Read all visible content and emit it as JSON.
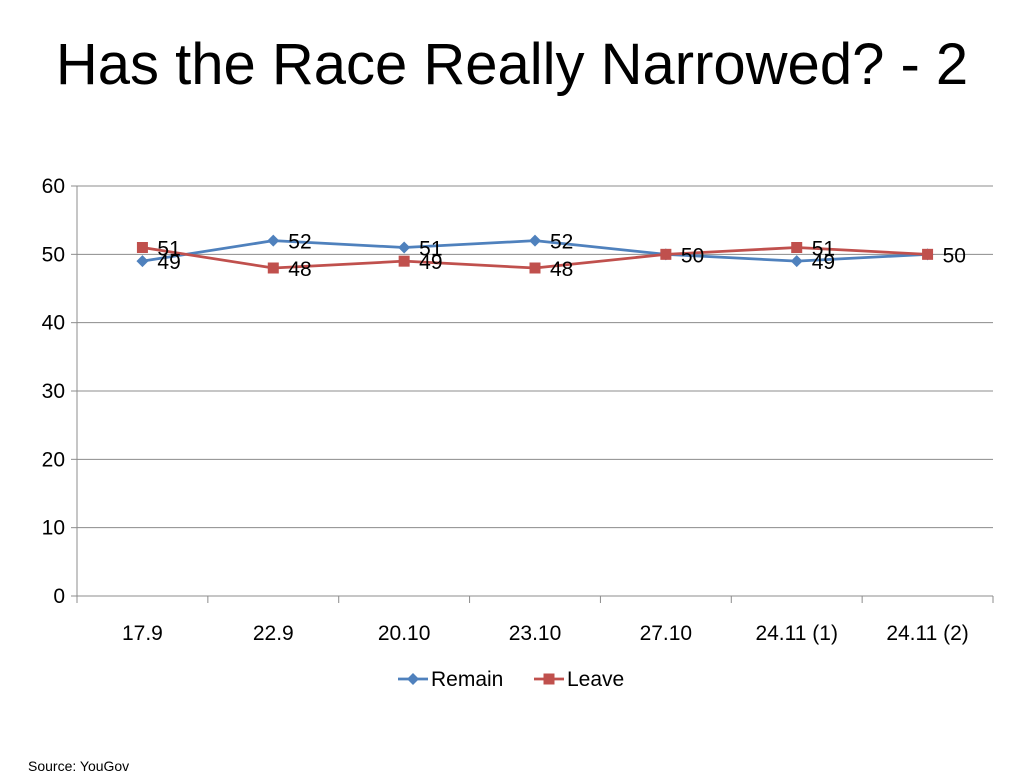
{
  "slide": {
    "title": "Has the Race Really Narrowed? - 2",
    "source": "Source: YouGov"
  },
  "chart_data": {
    "type": "line",
    "title": "",
    "xlabel": "",
    "ylabel": "",
    "categories": [
      "17.9",
      "22.9",
      "20.10",
      "23.10",
      "27.10",
      "24.11 (1)",
      "24.11 (2)"
    ],
    "ylim": [
      0,
      60
    ],
    "yticks": [
      0,
      10,
      20,
      30,
      40,
      50,
      60
    ],
    "grid": true,
    "legend_position": "bottom",
    "series": [
      {
        "name": "Remain",
        "values": [
          49,
          52,
          51,
          52,
          50,
          49,
          50
        ],
        "color": "#4F81BD",
        "marker": "diamond"
      },
      {
        "name": "Leave",
        "values": [
          51,
          48,
          49,
          48,
          50,
          51,
          50
        ],
        "color": "#C0504D",
        "marker": "square"
      }
    ],
    "data_labels": {
      "Remain": [
        "49",
        "52",
        "51",
        "52",
        "",
        "49",
        ""
      ],
      "Leave": [
        "51",
        "48",
        "49",
        "48",
        "50",
        "51",
        "50"
      ]
    }
  }
}
